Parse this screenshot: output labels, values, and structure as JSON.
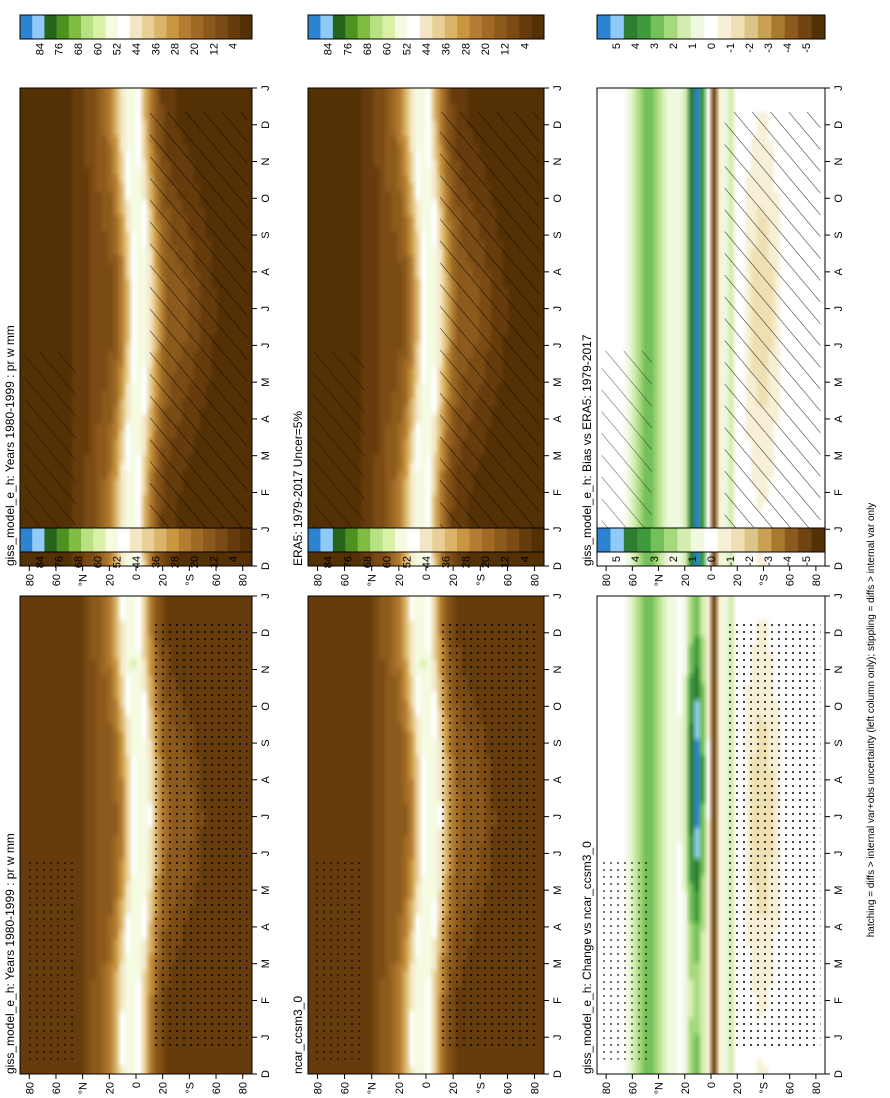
{
  "figure": {
    "footnote": "hatching = diffs > internal var+obs uncertainty (left column only); stippling = diffs > internal var only"
  },
  "palettes": {
    "abs": [
      "#543005",
      "#663c0c",
      "#7a4b14",
      "#8c5a1c",
      "#a06a26",
      "#b57d33",
      "#c8973f",
      "#d9b46a",
      "#e8cf97",
      "#f4e6c4",
      "#ffffff",
      "#f4fbe1",
      "#d9f0a6",
      "#b8e186",
      "#7fbc41",
      "#4d9221",
      "#276419",
      "#90caf9",
      "#2b83d1"
    ],
    "diff": [
      "#543005",
      "#6f4411",
      "#8c5a1c",
      "#a87a30",
      "#c8a252",
      "#ddc58a",
      "#eee0b3",
      "#f7f0d6",
      "#ffffff",
      "#f0f8e0",
      "#d3edb0",
      "#a6d97d",
      "#74c05a",
      "#3f9a3c",
      "#2e7d32",
      "#90caf9",
      "#2b83d1"
    ]
  },
  "chart_data": [
    {
      "type": "heatmap",
      "title": "giss_model_e_h: Years 1980-1999 : pr w mm",
      "x_tick_labels": [
        "D",
        "J",
        "F",
        "M",
        "A",
        "M",
        "J",
        "J",
        "A",
        "S",
        "O",
        "N",
        "D",
        "J"
      ],
      "y_tick_labels": [
        "80",
        "60",
        "°N",
        "20",
        "0",
        "20",
        "°S",
        "60",
        "80"
      ],
      "colorbar": {
        "palette": "abs",
        "labels": [
          "84",
          "76",
          "68",
          "60",
          "52",
          "44",
          "36",
          "28",
          "20",
          "12",
          "4"
        ],
        "min": 0,
        "max": 88
      },
      "overlay": "hatch",
      "field": "abs",
      "variant": 0
    },
    {
      "type": "heatmap",
      "title": "giss_model_e_h: Years 1980-1999 : pr w mm",
      "x_tick_labels": [
        "D",
        "J",
        "F",
        "M",
        "A",
        "M",
        "J",
        "J",
        "A",
        "S",
        "O",
        "N",
        "D",
        "J"
      ],
      "y_tick_labels": [
        "80",
        "60",
        "°N",
        "20",
        "0",
        "20",
        "°S",
        "60",
        "80"
      ],
      "colorbar": {
        "palette": "abs",
        "labels": [
          "84",
          "76",
          "68",
          "60",
          "52",
          "44",
          "36",
          "28",
          "20",
          "12",
          "4"
        ],
        "min": 0,
        "max": 88
      },
      "overlay": "stipple",
      "field": "abs",
      "variant": 1
    },
    {
      "type": "heatmap",
      "title": "ERA5: 1979-2017 Uncer=5%",
      "x_tick_labels": [
        "D",
        "J",
        "F",
        "M",
        "A",
        "M",
        "J",
        "J",
        "A",
        "S",
        "O",
        "N",
        "D",
        "J"
      ],
      "y_tick_labels": [
        "80",
        "60",
        "°N",
        "20",
        "0",
        "20",
        "°S",
        "60",
        "80"
      ],
      "colorbar": {
        "palette": "abs",
        "labels": [
          "84",
          "76",
          "68",
          "60",
          "52",
          "44",
          "36",
          "28",
          "20",
          "12",
          "4"
        ],
        "min": 0,
        "max": 88
      },
      "overlay": "hatch",
      "field": "abs",
      "variant": 2
    },
    {
      "type": "heatmap",
      "title": "ncar_ccsm3_0",
      "x_tick_labels": [
        "D",
        "J",
        "F",
        "M",
        "A",
        "M",
        "J",
        "J",
        "A",
        "S",
        "O",
        "N",
        "D",
        "J"
      ],
      "y_tick_labels": [
        "80",
        "60",
        "°N",
        "20",
        "0",
        "20",
        "°S",
        "60",
        "80"
      ],
      "colorbar": {
        "palette": "abs",
        "labels": [
          "84",
          "76",
          "68",
          "60",
          "52",
          "44",
          "36",
          "28",
          "20",
          "12",
          "4"
        ],
        "min": 0,
        "max": 88
      },
      "overlay": "stipple",
      "field": "abs",
      "variant": 3
    },
    {
      "type": "heatmap",
      "title": "giss_model_e_h: Bias vs ERA5: 1979-2017",
      "x_tick_labels": [
        "D",
        "J",
        "F",
        "M",
        "A",
        "M",
        "J",
        "J",
        "A",
        "S",
        "O",
        "N",
        "D",
        "J"
      ],
      "y_tick_labels": [
        "80",
        "60",
        "°N",
        "20",
        "0",
        "20",
        "°S",
        "60",
        "80"
      ],
      "colorbar": {
        "palette": "diff",
        "labels": [
          "5",
          "4",
          "3",
          "2",
          "1",
          "0",
          "-1",
          "-2",
          "-3",
          "-4",
          "-5"
        ],
        "min": -5.5,
        "max": 5.5
      },
      "overlay": "hatch",
      "field": "diff",
      "variant": 4
    },
    {
      "type": "heatmap",
      "title": "giss_model_e_h: Change vs ncar_ccsm3_0",
      "x_tick_labels": [
        "D",
        "J",
        "F",
        "M",
        "A",
        "M",
        "J",
        "J",
        "A",
        "S",
        "O",
        "N",
        "D",
        "J"
      ],
      "y_tick_labels": [
        "80",
        "60",
        "°N",
        "20",
        "0",
        "20",
        "°S",
        "60",
        "80"
      ],
      "colorbar": {
        "palette": "diff",
        "labels": [
          "5",
          "4",
          "3",
          "2",
          "1",
          "0",
          "-1",
          "-2",
          "-3",
          "-4",
          "-5"
        ],
        "min": -5.5,
        "max": 5.5
      },
      "overlay": "stipple",
      "field": "diff",
      "variant": 5
    }
  ]
}
